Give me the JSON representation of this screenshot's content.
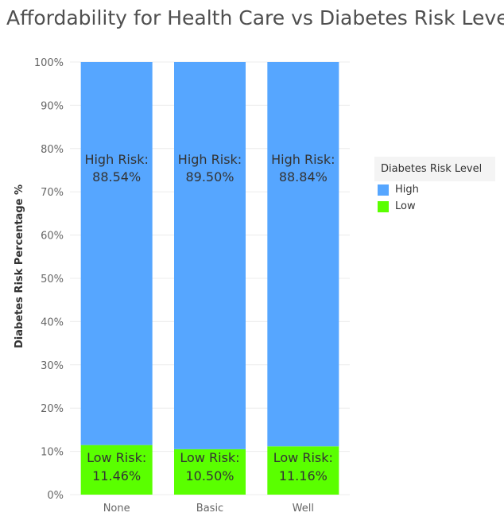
{
  "title": "Affordability for Health Care vs Diabetes Risk Level",
  "legend": {
    "title": "Diabetes Risk Level",
    "items": [
      {
        "label": "High",
        "color": "#56a6ff"
      },
      {
        "label": "Low",
        "color": "#5aff00"
      }
    ]
  },
  "chart_data": {
    "type": "bar",
    "stacked": true,
    "categories": [
      "None",
      "Basic",
      "Well"
    ],
    "series": [
      {
        "name": "Low",
        "values": [
          11.46,
          10.5,
          11.16
        ],
        "color": "#5aff00",
        "label_prefix": "Low Risk:"
      },
      {
        "name": "High",
        "values": [
          88.54,
          89.5,
          88.84
        ],
        "color": "#56a6ff",
        "label_prefix": "High Risk:"
      }
    ],
    "data_labels": {
      "High": [
        "88.54%",
        "89.50%",
        "88.84%"
      ],
      "Low": [
        "11.46%",
        "10.50%",
        "11.16%"
      ]
    },
    "xlabel": "",
    "ylabel": "Diabetes Risk Percentage %",
    "ylim": [
      0,
      100
    ],
    "yticks": [
      "0%",
      "10%",
      "20%",
      "30%",
      "40%",
      "50%",
      "60%",
      "70%",
      "80%",
      "90%",
      "100%"
    ],
    "grid": true,
    "legend_position": "right"
  }
}
